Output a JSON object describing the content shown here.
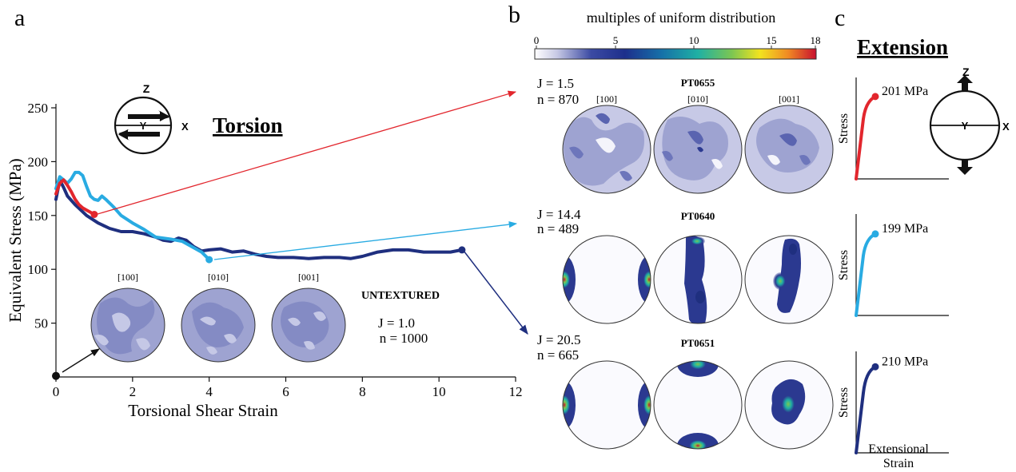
{
  "panels": {
    "a": "a",
    "b": "b",
    "c": "c"
  },
  "colors": {
    "red": "#e2262d",
    "light_blue": "#29abe2",
    "dark_blue": "#1f2f7f",
    "pf_fill": "#8f96c9",
    "pf_dense": "#2b3990"
  },
  "icon": {
    "z": "Z",
    "y": "Y",
    "x": "X",
    "name": "shear-sense-icon"
  },
  "torsion": {
    "title": "Torsion",
    "xlabel": "Torsional Shear Strain",
    "ylabel": "Equivalent Stress (MPa)",
    "untextured": {
      "label": "UNTEXTURED",
      "j": "J = 1.0",
      "n": "n = 1000",
      "axes": [
        "[100]",
        "[010]",
        "[001]"
      ]
    }
  },
  "chart_data": {
    "type": "line",
    "title": "Torsion",
    "xlabel": "Torsional Shear Strain",
    "ylabel": "Equivalent Stress (MPa)",
    "xlim": [
      0,
      12
    ],
    "ylim": [
      0,
      250
    ],
    "xticks": [
      0,
      2,
      4,
      6,
      8,
      10,
      12
    ],
    "yticks": [
      50,
      100,
      150,
      200,
      250
    ],
    "grid": false,
    "series": [
      {
        "color": "#1f2f7f",
        "endpoint": [
          10.6,
          118
        ],
        "points": [
          [
            0,
            165
          ],
          [
            0.1,
            183
          ],
          [
            0.2,
            176
          ],
          [
            0.3,
            168
          ],
          [
            0.5,
            160
          ],
          [
            0.8,
            150
          ],
          [
            1.1,
            143
          ],
          [
            1.4,
            138
          ],
          [
            1.7,
            135
          ],
          [
            2.0,
            135
          ],
          [
            2.3,
            133
          ],
          [
            2.6,
            130
          ],
          [
            2.8,
            127
          ],
          [
            3.0,
            126
          ],
          [
            3.2,
            129
          ],
          [
            3.4,
            127
          ],
          [
            3.6,
            121
          ],
          [
            3.8,
            117
          ],
          [
            4.0,
            118
          ],
          [
            4.3,
            119
          ],
          [
            4.6,
            116
          ],
          [
            4.9,
            117
          ],
          [
            5.2,
            114
          ],
          [
            5.5,
            112
          ],
          [
            5.8,
            111
          ],
          [
            6.2,
            111
          ],
          [
            6.6,
            110
          ],
          [
            7.0,
            111
          ],
          [
            7.4,
            111
          ],
          [
            7.7,
            110
          ],
          [
            8.0,
            112
          ],
          [
            8.4,
            116
          ],
          [
            8.8,
            118
          ],
          [
            9.2,
            118
          ],
          [
            9.6,
            116
          ],
          [
            10.0,
            116
          ],
          [
            10.3,
            116
          ],
          [
            10.6,
            118
          ]
        ]
      },
      {
        "color": "#29abe2",
        "endpoint": [
          4.0,
          109
        ],
        "points": [
          [
            0,
            175
          ],
          [
            0.1,
            186
          ],
          [
            0.2,
            183
          ],
          [
            0.3,
            180
          ],
          [
            0.4,
            184
          ],
          [
            0.5,
            190
          ],
          [
            0.6,
            190
          ],
          [
            0.7,
            187
          ],
          [
            0.8,
            177
          ],
          [
            0.9,
            168
          ],
          [
            1.0,
            165
          ],
          [
            1.1,
            164
          ],
          [
            1.2,
            168
          ],
          [
            1.3,
            165
          ],
          [
            1.5,
            158
          ],
          [
            1.7,
            150
          ],
          [
            2.0,
            143
          ],
          [
            2.3,
            137
          ],
          [
            2.6,
            130
          ],
          [
            3.0,
            128
          ],
          [
            3.3,
            126
          ],
          [
            3.6,
            120
          ],
          [
            3.8,
            116
          ],
          [
            4.0,
            109
          ]
        ]
      },
      {
        "color": "#e2262d",
        "endpoint": [
          1.0,
          151
        ],
        "points": [
          [
            0,
            170
          ],
          [
            0.1,
            180
          ],
          [
            0.2,
            183
          ],
          [
            0.3,
            178
          ],
          [
            0.4,
            172
          ],
          [
            0.5,
            165
          ],
          [
            0.6,
            160
          ],
          [
            0.7,
            157
          ],
          [
            0.8,
            155
          ],
          [
            0.9,
            153
          ],
          [
            1.0,
            151
          ]
        ]
      }
    ],
    "start_point": [
      0,
      1
    ]
  },
  "cbar": {
    "title": "multiples of uniform distribution",
    "ticks": [
      "0",
      "5",
      "10",
      "15",
      "18"
    ]
  },
  "samples": [
    {
      "id": "PT0655",
      "j": "J = 1.5",
      "n": "n = 870",
      "color": "#e2262d",
      "stress": "201 MPa",
      "peak": 201,
      "axes": [
        "[100]",
        "[010]",
        "[001]"
      ]
    },
    {
      "id": "PT0640",
      "j": "J = 14.4",
      "n": "n = 489",
      "color": "#29abe2",
      "stress": "199 MPa",
      "peak": 199
    },
    {
      "id": "PT0651",
      "j": "J = 20.5",
      "n": "n = 665",
      "color": "#1f2f7f",
      "stress": "210 MPa",
      "peak": 210
    }
  ],
  "extension": {
    "title": "Extension",
    "ylabel": "Stress",
    "xlabel_line1": "Extensional",
    "xlabel_line2": "Strain"
  }
}
